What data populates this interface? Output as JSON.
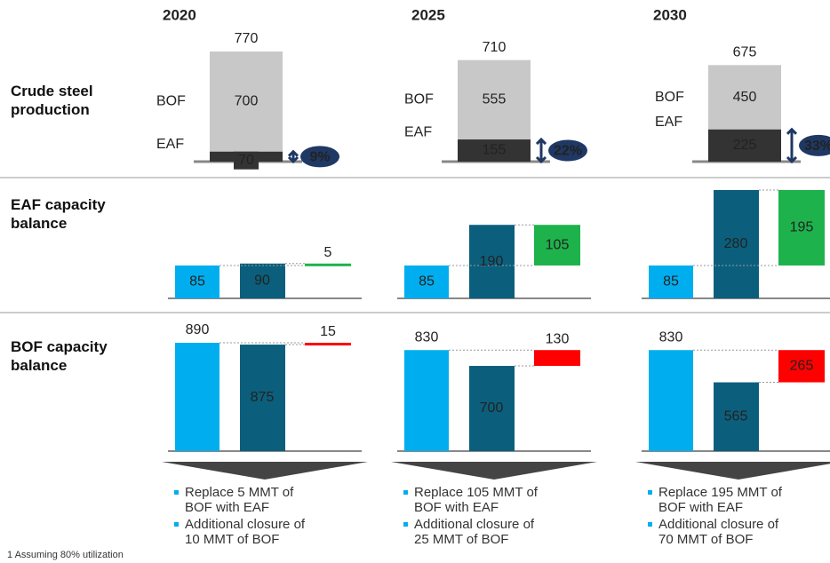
{
  "years": [
    "2020",
    "2025",
    "2030"
  ],
  "row_labels": [
    "Crude steel production",
    "EAF capacity balance",
    "BOF capacity balance"
  ],
  "production": {
    "type": "stacked-bar",
    "bof_label": "BOF",
    "eaf_label": "EAF",
    "total": [
      770,
      710,
      675
    ],
    "bof": [
      700,
      555,
      450
    ],
    "eaf": [
      70,
      155,
      225
    ],
    "eaf_share": [
      9,
      22,
      33
    ],
    "eaf_share_labels": [
      "9%",
      "22%",
      "33%"
    ],
    "bof_color": "#c8c8c8",
    "eaf_color": "#333333",
    "share_color": "#1f3864"
  },
  "eaf_balance": {
    "type": "waterfall",
    "current": [
      85,
      85,
      85
    ],
    "required": [
      90,
      190,
      280
    ],
    "gap": [
      5,
      105,
      195
    ],
    "colors": [
      "#00aeef",
      "#0b5f7c",
      "#1db24b"
    ]
  },
  "bof_balance": {
    "type": "waterfall",
    "current": [
      890,
      830,
      830
    ],
    "required": [
      875,
      700,
      565
    ],
    "gap": [
      15,
      130,
      265
    ],
    "colors": [
      "#00aeef",
      "#0b5f7c",
      "#ff0000"
    ]
  },
  "notes": [
    [
      "Replace 5 MMT of BOF with EAF",
      "Additional closure of 10 MMT of BOF"
    ],
    [
      "Replace 105 MMT of BOF with EAF",
      "Additional closure of 25 MMT of BOF"
    ],
    [
      "Replace 195 MMT of BOF with EAF",
      "Additional closure of 70 MMT of BOF"
    ]
  ],
  "footnote": "1 Assuming 80% utilization"
}
